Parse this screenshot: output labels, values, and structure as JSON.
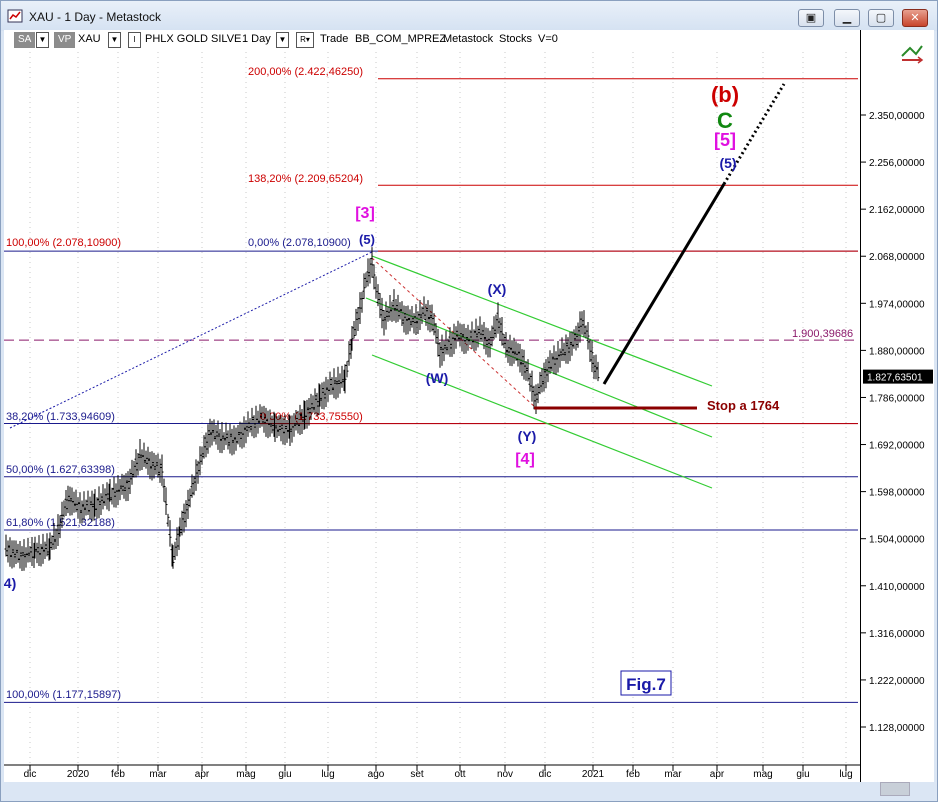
{
  "window": {
    "title": "XAU - 1 Day - Metastock",
    "buttons": {
      "minimize": "▭",
      "restore": "▢",
      "close": "✕"
    }
  },
  "toolbar": {
    "sa": "SA",
    "vp": "VP",
    "symbol": "XAU",
    "name": "PHLX GOLD SILVE",
    "period": "1 Day",
    "r_label": "R",
    "trade": "Trade",
    "expert": "BB_COM_MPREZ",
    "source": "Metastock",
    "type": "Stocks",
    "v": "V=0"
  },
  "price_axis": {
    "labels": [
      "2.350,00000",
      "2.256,00000",
      "2.162,00000",
      "2.068,00000",
      "1.974,00000",
      "1.880,00000",
      "1.786,00000",
      "1.692,00000",
      "1.598,00000",
      "1.504,00000",
      "1.410,00000",
      "1.316,00000",
      "1.222,00000",
      "1.128,00000"
    ],
    "current": "1.827,63501"
  },
  "time_axis": [
    "dic",
    "2020",
    "feb",
    "mar",
    "apr",
    "mag",
    "giu",
    "lug",
    "ago",
    "set",
    "ott",
    "nov",
    "dic",
    "2021",
    "feb",
    "mar",
    "apr",
    "mag",
    "giu",
    "lug"
  ],
  "fib_levels": [
    {
      "text": "200,00% (2.422,46250)",
      "color": "#cc0000"
    },
    {
      "text": "138,20% (2.209,65204)",
      "color": "#cc0000"
    },
    {
      "text": "100,00% (2.078,10900)",
      "color": "#cc0000"
    },
    {
      "text": "0,00% (2.078,10900)",
      "color": "#1a1a8c"
    },
    {
      "text": "38,20% (1.733,94609)",
      "color": "#1a1a8c"
    },
    {
      "text": "0,00% (1.733,75550)",
      "color": "#cc0000"
    },
    {
      "text": "50,00% (1.627,63398)",
      "color": "#1a1a8c"
    },
    {
      "text": "61,80% (1.521,32188)",
      "color": "#1a1a8c"
    },
    {
      "text": "100,00% (1.177,15897)",
      "color": "#1a1a8c"
    }
  ],
  "horizontal_line_label": "1.900,39686",
  "stop_label": "Stop a 1764",
  "figure_label": "Fig.7",
  "wave_labels": {
    "b": "(b)",
    "c": "C",
    "five_bracket": "[5]",
    "five_paren": "(5)",
    "three_bracket": "[3]",
    "five_paren_top": "(5)",
    "x": "(X)",
    "w": "(W)",
    "y": "(Y)",
    "four_bracket": "[4]",
    "four_left": "4)"
  },
  "colors": {
    "fib_red": "#cc0000",
    "fib_blue": "#1a1a8c",
    "channel_green": "#33cc33",
    "wave_magenta": "#e010e0",
    "wave_green": "#118811",
    "stop_dark_red": "#8b0000"
  }
}
